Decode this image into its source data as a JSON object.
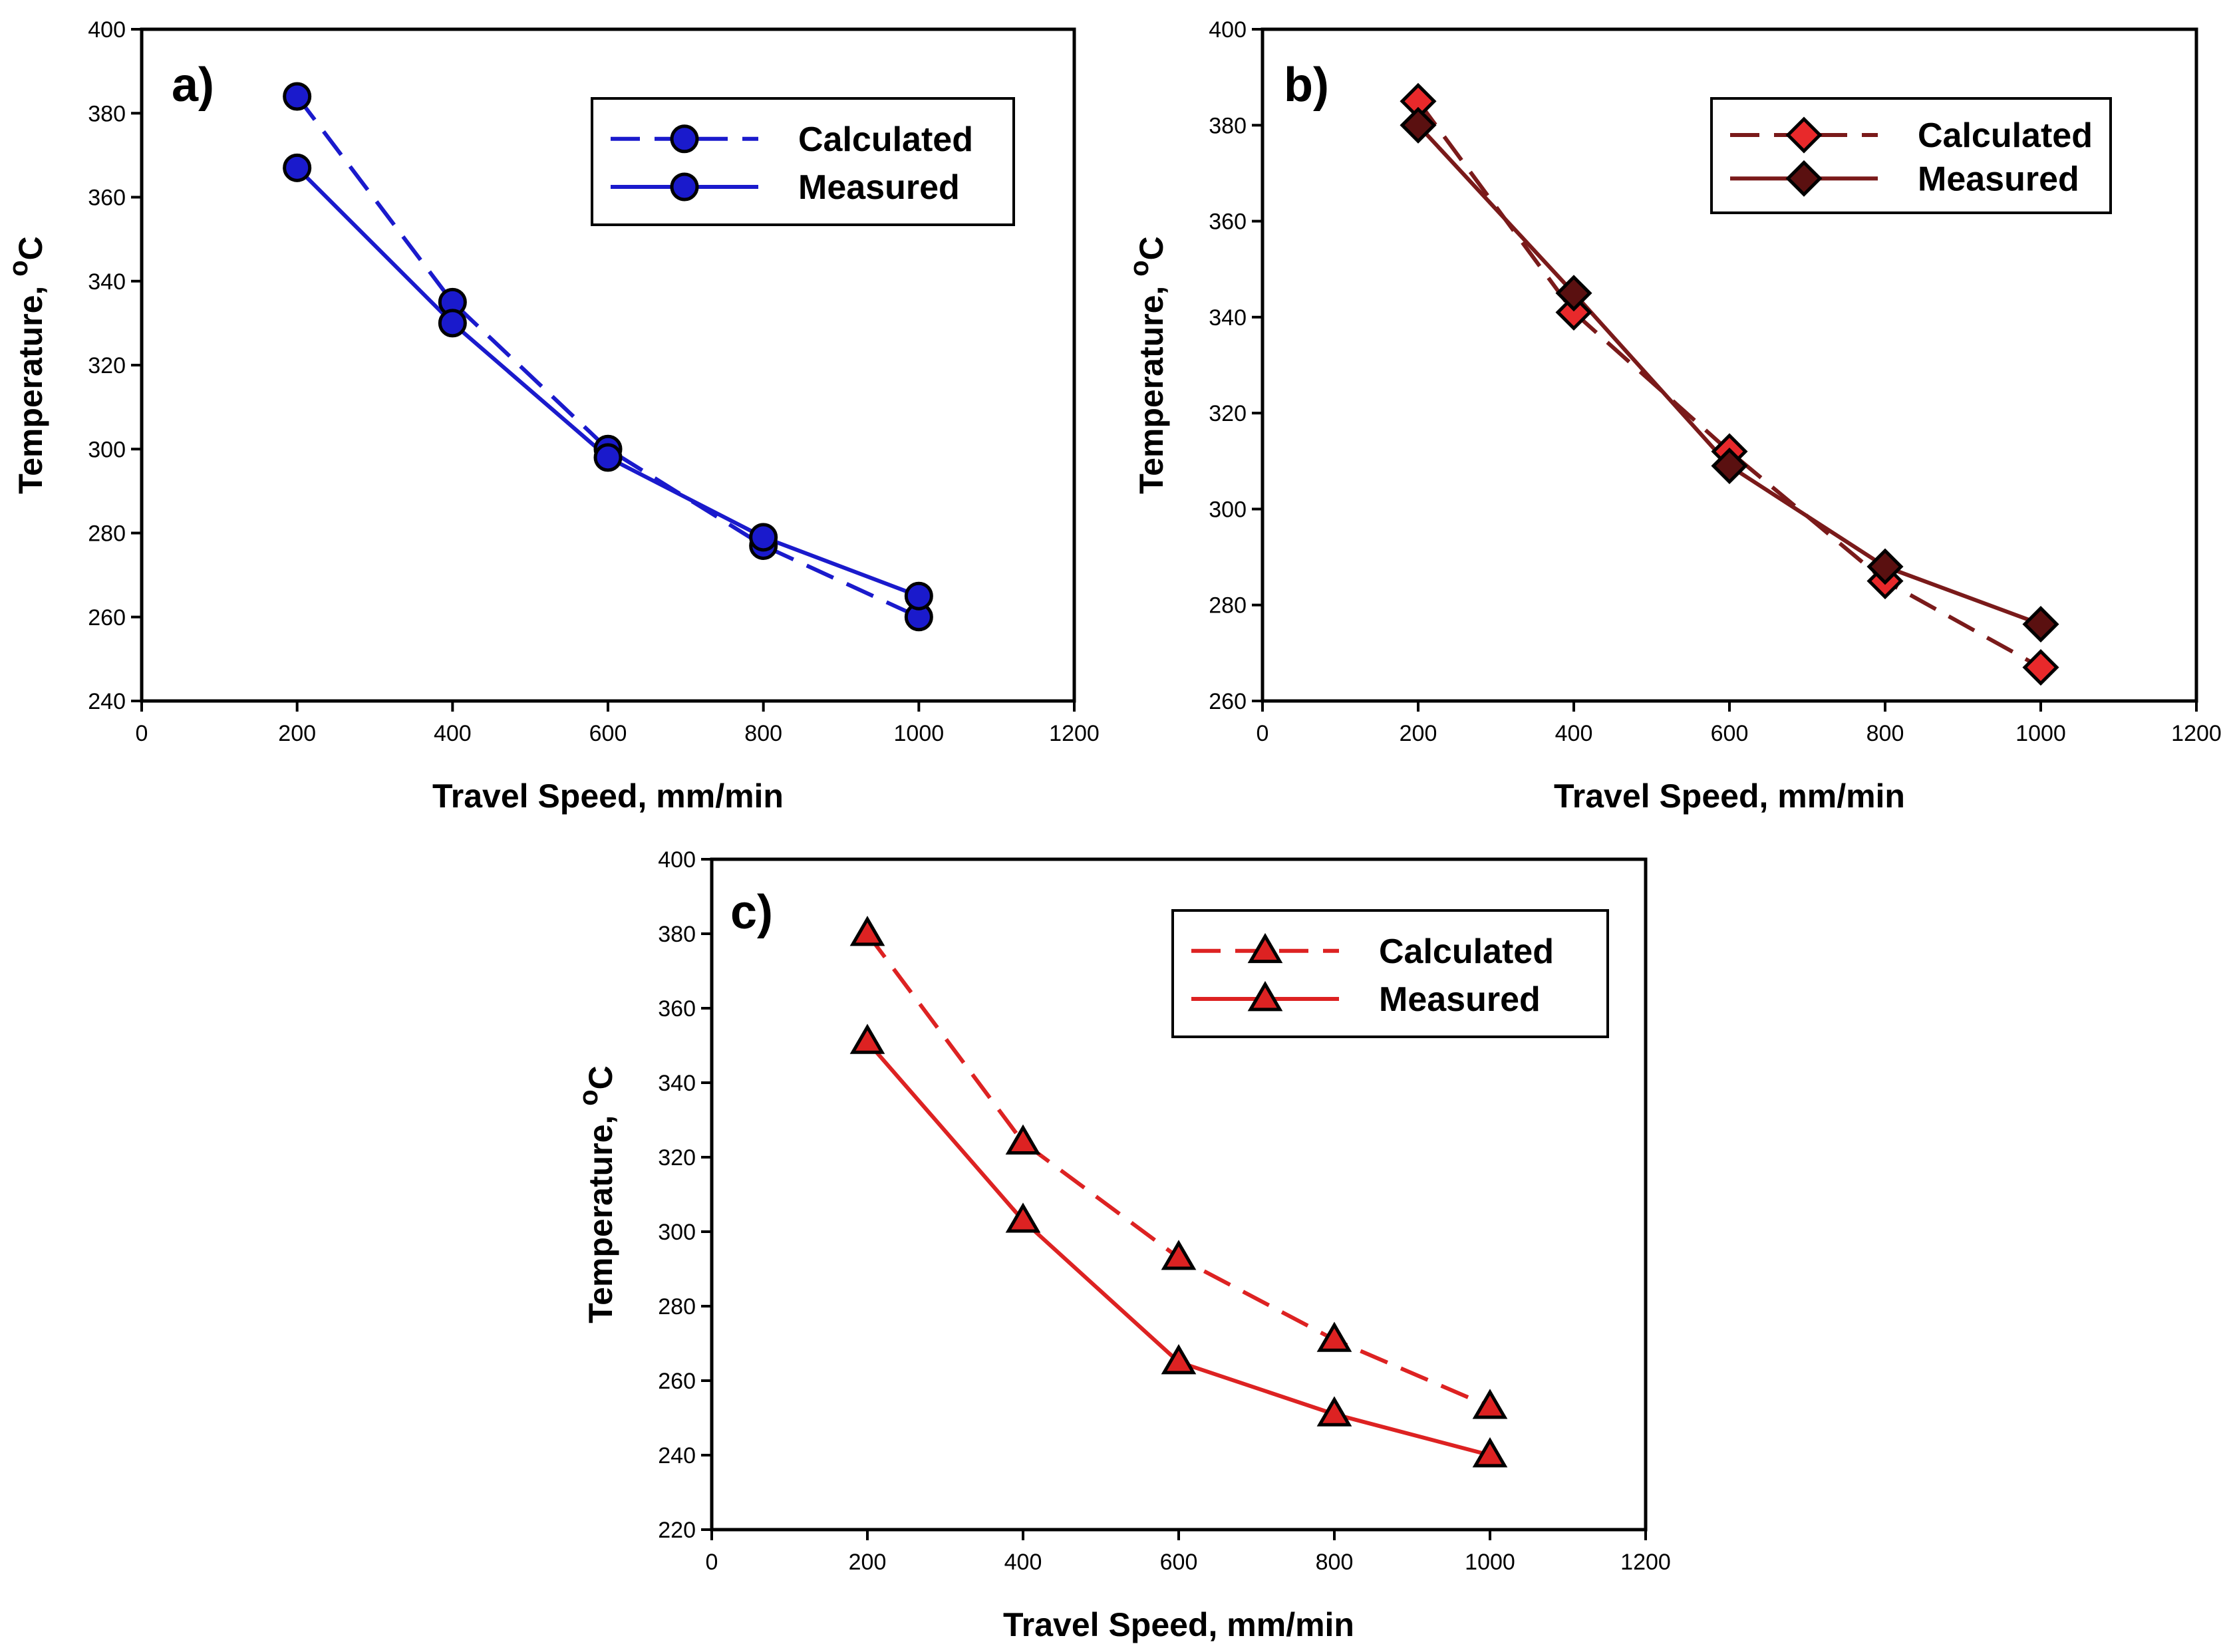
{
  "chart_data": [
    {
      "type": "line",
      "panel_label": "a)",
      "xlabel": "Travel Speed, mm/min",
      "ylabel": "Temperature, ",
      "ylabel_unit": "C",
      "ylabel_sup": "o",
      "xlim": [
        0,
        1200
      ],
      "ylim": [
        240,
        400
      ],
      "xticks": [
        0,
        200,
        400,
        600,
        800,
        1000,
        1200
      ],
      "yticks": [
        240,
        260,
        280,
        300,
        320,
        340,
        360,
        380,
        400
      ],
      "grid": false,
      "legend_position": "top-right",
      "x": [
        200,
        400,
        600,
        800,
        1000
      ],
      "series": [
        {
          "name": "Calculated",
          "values": [
            384,
            335,
            300,
            277,
            260
          ],
          "color": "#1a1acc",
          "line": "dashed",
          "marker": "circle",
          "marker_fill": "#1a1acc"
        },
        {
          "name": "Measured",
          "values": [
            367,
            330,
            298,
            279,
            265
          ],
          "color": "#1a1acc",
          "line": "solid",
          "marker": "circle",
          "marker_fill": "#1a1acc"
        }
      ]
    },
    {
      "type": "line",
      "panel_label": "b)",
      "xlabel": "Travel Speed, mm/min",
      "ylabel": "Temperature, ",
      "ylabel_unit": "C",
      "ylabel_sup": "o",
      "xlim": [
        0,
        1200
      ],
      "ylim": [
        260,
        400
      ],
      "xticks": [
        0,
        200,
        400,
        600,
        800,
        1000,
        1200
      ],
      "yticks": [
        260,
        280,
        300,
        320,
        340,
        360,
        380,
        400
      ],
      "grid": false,
      "legend_position": "top-right",
      "x": [
        200,
        400,
        600,
        800,
        1000
      ],
      "series": [
        {
          "name": "Calculated",
          "values": [
            385,
            341,
            312,
            285,
            267
          ],
          "color": "#7a1a1a",
          "line": "dashed",
          "marker": "diamond",
          "marker_fill": "#e8292b"
        },
        {
          "name": "Measured",
          "values": [
            380,
            345,
            309,
            288,
            276
          ],
          "color": "#7a1a1a",
          "line": "solid",
          "marker": "diamond",
          "marker_fill": "#5a1010"
        }
      ]
    },
    {
      "type": "line",
      "panel_label": "c)",
      "xlabel": "Travel Speed, mm/min",
      "ylabel": "Temperature, ",
      "ylabel_unit": "C",
      "ylabel_sup": "o",
      "xlim": [
        0,
        1200
      ],
      "ylim": [
        220,
        400
      ],
      "xticks": [
        0,
        200,
        400,
        600,
        800,
        1000,
        1200
      ],
      "yticks": [
        220,
        240,
        260,
        280,
        300,
        320,
        340,
        360,
        380,
        400
      ],
      "grid": false,
      "legend_position": "top-right",
      "x": [
        200,
        400,
        600,
        800,
        1000
      ],
      "series": [
        {
          "name": "Calculated",
          "values": [
            380,
            324,
            293,
            271,
            253
          ],
          "color": "#dd2222",
          "line": "dashed",
          "marker": "triangle",
          "marker_fill": "#dd2222"
        },
        {
          "name": "Measured",
          "values": [
            351,
            303,
            265,
            251,
            240
          ],
          "color": "#dd2222",
          "line": "solid",
          "marker": "triangle",
          "marker_fill": "#dd2222"
        }
      ]
    }
  ]
}
